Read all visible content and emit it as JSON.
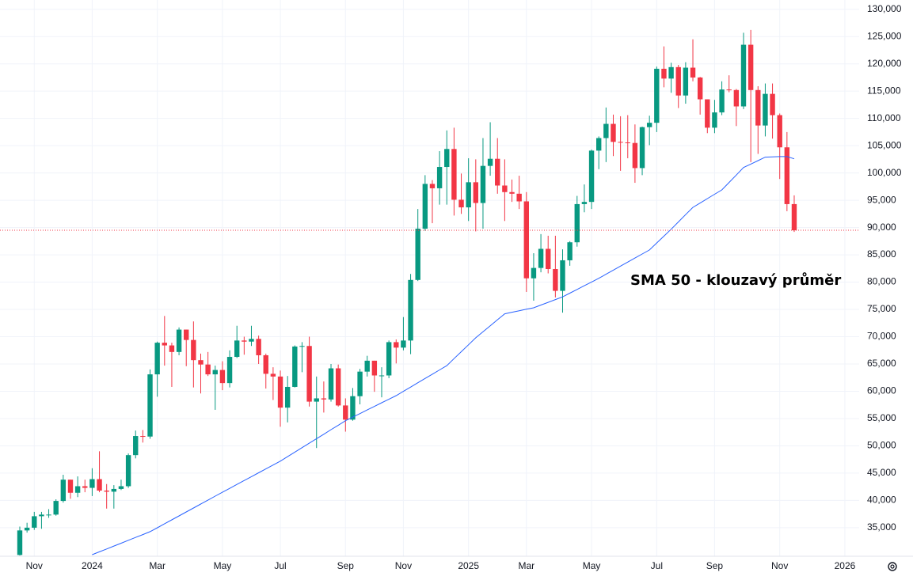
{
  "chart_data": {
    "type": "candlestick",
    "categories": [
      null,
      null,
      "Nov",
      null,
      null,
      null,
      null,
      null,
      null,
      null,
      "2024",
      null,
      null,
      null,
      null,
      null,
      null,
      null,
      null,
      "Mar",
      null,
      null,
      null,
      null,
      null,
      null,
      null,
      null,
      "May",
      null,
      null,
      null,
      null,
      null,
      null,
      null,
      "Jul",
      null,
      null,
      null,
      null,
      null,
      null,
      null,
      null,
      "Sep",
      null,
      null,
      null,
      null,
      null,
      null,
      null,
      "Nov",
      null,
      null,
      null,
      null,
      null,
      null,
      null,
      null,
      "2025",
      null,
      null,
      null,
      null,
      null,
      null,
      null,
      "Mar",
      null,
      null,
      null,
      null,
      null,
      null,
      null,
      null,
      "May",
      null,
      null,
      null,
      null,
      null,
      null,
      null,
      null,
      "Jul",
      null,
      null,
      null,
      null,
      null,
      null,
      null,
      "Sep",
      null,
      null,
      null,
      null,
      null,
      null,
      null,
      null,
      "Nov",
      null,
      null,
      null,
      null,
      null,
      null,
      null,
      null,
      "2026",
      null
    ],
    "open": [
      30000,
      34500,
      35000,
      37100,
      37400,
      37400,
      39900,
      43800,
      41400,
      42600,
      42300,
      43900,
      41800,
      41600,
      42100,
      42600,
      48300,
      51800,
      51700,
      63100,
      68900,
      68400,
      67200,
      71300,
      69400,
      65700,
      64900,
      63100,
      63900,
      61500,
      66300,
      69300,
      69100,
      69600,
      66600,
      63200,
      62700,
      57000,
      60800,
      68200,
      68300,
      58100,
      58700,
      58500,
      64200,
      57400,
      54800,
      59100,
      63600,
      65600,
      62900,
      62900,
      69000,
      68000,
      69300,
      80400,
      89800,
      98000,
      97200,
      101100,
      104400,
      95100,
      93700,
      98300,
      94500,
      101300,
      102600,
      97700,
      96500,
      96200,
      94800,
      80700,
      82600,
      86100,
      82400,
      78400,
      84000,
      87300,
      94300,
      94700,
      104100,
      106400,
      109000,
      105700,
      105600,
      105500,
      100900,
      108400,
      109200,
      119100,
      117300,
      119400,
      114200,
      119300,
      117500,
      113500,
      108300,
      111100,
      115300,
      115200,
      112200,
      123500,
      115200,
      108700,
      114500,
      110600,
      104700,
      94300,
      null,
      null,
      null,
      null,
      null,
      null,
      null,
      null
    ],
    "high": [
      35200,
      35900,
      37900,
      37900,
      38400,
      40200,
      44700,
      43800,
      44400,
      43800,
      45900,
      49000,
      43000,
      42800,
      43800,
      48600,
      52800,
      52900,
      64000,
      69100,
      73800,
      68900,
      71700,
      71300,
      72800,
      66900,
      67200,
      64700,
      65500,
      67500,
      72000,
      70000,
      72000,
      70200,
      66900,
      64400,
      63800,
      62800,
      68400,
      69000,
      70000,
      62700,
      61800,
      65000,
      64900,
      58700,
      60600,
      64100,
      66500,
      65600,
      64400,
      69300,
      69500,
      73600,
      81500,
      93400,
      99600,
      98700,
      104000,
      107800,
      108300,
      99900,
      102700,
      102500,
      106400,
      109300,
      106400,
      102500,
      98800,
      99500,
      96500,
      85300,
      88800,
      88500,
      88500,
      86000,
      87500,
      95800,
      97900,
      104300,
      106700,
      112000,
      110700,
      110400,
      110600,
      108900,
      108500,
      110500,
      119500,
      123200,
      120200,
      119800,
      120300,
      124500,
      117600,
      113500,
      113400,
      116800,
      117900,
      115400,
      125700,
      126200,
      115900,
      116400,
      116400,
      110900,
      107500,
      95900,
      null,
      null,
      null,
      null,
      null,
      null,
      null,
      null
    ],
    "low": [
      29900,
      34100,
      34600,
      34800,
      36800,
      37200,
      39600,
      40300,
      40600,
      41500,
      40800,
      41500,
      38500,
      38500,
      41900,
      42300,
      47700,
      50600,
      51300,
      59000,
      64700,
      60800,
      66600,
      64600,
      60700,
      59600,
      62800,
      56600,
      60200,
      60700,
      66100,
      66700,
      68300,
      65000,
      60500,
      58400,
      53500,
      54300,
      60700,
      63500,
      57200,
      49600,
      56100,
      58100,
      57200,
      52600,
      54600,
      57600,
      62700,
      59900,
      58900,
      62400,
      65100,
      67500,
      66800,
      80200,
      89400,
      90800,
      94200,
      94200,
      92200,
      92500,
      91200,
      89300,
      89800,
      99500,
      96200,
      91200,
      94700,
      93400,
      78200,
      76600,
      81800,
      81600,
      77200,
      74400,
      83000,
      86500,
      92800,
      93400,
      100700,
      102000,
      103100,
      100400,
      102700,
      98200,
      99600,
      105100,
      107500,
      115700,
      114700,
      111900,
      112700,
      116800,
      110700,
      107300,
      107300,
      110600,
      114800,
      108600,
      111700,
      102000,
      103500,
      106700,
      106300,
      98900,
      93000,
      89200,
      null,
      null,
      null,
      null,
      null,
      null,
      null,
      null
    ],
    "close": [
      34500,
      35000,
      37100,
      37400,
      37400,
      39900,
      43800,
      41400,
      42600,
      42300,
      43900,
      41800,
      41600,
      42100,
      42600,
      48300,
      51800,
      51700,
      63100,
      68900,
      68400,
      67200,
      71300,
      69400,
      65700,
      64900,
      63100,
      63900,
      61500,
      66300,
      69300,
      69100,
      69600,
      66600,
      63200,
      62700,
      57000,
      60800,
      68200,
      68300,
      58100,
      58700,
      58500,
      64200,
      57400,
      54800,
      59100,
      63600,
      65600,
      62900,
      62900,
      69000,
      68000,
      69300,
      80400,
      89800,
      98000,
      97200,
      101100,
      104400,
      95100,
      93700,
      98300,
      94500,
      101300,
      102600,
      97700,
      96500,
      96200,
      94800,
      80700,
      82600,
      86100,
      82400,
      78400,
      84000,
      87300,
      94300,
      94700,
      104100,
      106400,
      109000,
      105700,
      105600,
      105500,
      100900,
      108400,
      109200,
      119100,
      117300,
      119400,
      114200,
      119300,
      117500,
      113500,
      108300,
      111100,
      115300,
      115200,
      112200,
      123500,
      115200,
      108700,
      114500,
      110600,
      104700,
      94300,
      89500,
      null,
      null,
      null,
      null,
      null,
      null,
      null,
      null
    ],
    "up_color": "#089981",
    "down_color": "#f23645",
    "sma": {
      "color": "#2962ff",
      "values": [
        null,
        null,
        null,
        null,
        null,
        null,
        null,
        null,
        null,
        null,
        30050,
        30580,
        31100,
        31630,
        32160,
        32690,
        33210,
        33740,
        34270,
        34990,
        35720,
        36440,
        37160,
        37880,
        38610,
        39330,
        40050,
        40780,
        41500,
        42210,
        42930,
        43640,
        44350,
        45060,
        45780,
        46490,
        47200,
        48020,
        48840,
        49670,
        50490,
        51310,
        52130,
        52960,
        53780,
        54600,
        55260,
        55910,
        56570,
        57230,
        57890,
        58540,
        59200,
        59990,
        60770,
        61560,
        62340,
        63130,
        63910,
        64700,
        65980,
        67250,
        68530,
        69800,
        70900,
        72000,
        73100,
        74200,
        74480,
        74750,
        75030,
        75300,
        75800,
        76300,
        76800,
        77300,
        77980,
        78660,
        79340,
        80020,
        80700,
        81440,
        82190,
        82930,
        83670,
        84410,
        85160,
        85900,
        87170,
        88430,
        89700,
        91030,
        92370,
        93700,
        94500,
        95300,
        96100,
        96900,
        98270,
        99630,
        101000,
        101630,
        102270,
        102900,
        102950,
        103000,
        103000,
        102600,
        null,
        null,
        null,
        null,
        null,
        null,
        null,
        null
      ]
    },
    "annotation": "SMA 50 - klouzavý průměr",
    "last_price_line": {
      "color": "#f23645"
    },
    "ylim": [
      30200,
      131700
    ],
    "yticks": [
      {
        "value": 35000,
        "label": "35,000"
      },
      {
        "value": 40000,
        "label": "40,000"
      },
      {
        "value": 45000,
        "label": "45,000"
      },
      {
        "value": 50000,
        "label": "50,000"
      },
      {
        "value": 55000,
        "label": "55,000"
      },
      {
        "value": 60000,
        "label": "60,000"
      },
      {
        "value": 65000,
        "label": "65,000"
      },
      {
        "value": 70000,
        "label": "70,000"
      },
      {
        "value": 75000,
        "label": "75,000"
      },
      {
        "value": 80000,
        "label": "80,000"
      },
      {
        "value": 85000,
        "label": "85,000"
      },
      {
        "value": 90000,
        "label": "90,000"
      },
      {
        "value": 95000,
        "label": "95,000"
      },
      {
        "value": 100000,
        "label": "100,000"
      },
      {
        "value": 105000,
        "label": "105,000"
      },
      {
        "value": 110000,
        "label": "110,000"
      },
      {
        "value": 115000,
        "label": "115,000"
      },
      {
        "value": 120000,
        "label": "120,000"
      },
      {
        "value": 125000,
        "label": "125,000"
      },
      {
        "value": 130000,
        "label": "130,000"
      }
    ],
    "grid": true
  }
}
